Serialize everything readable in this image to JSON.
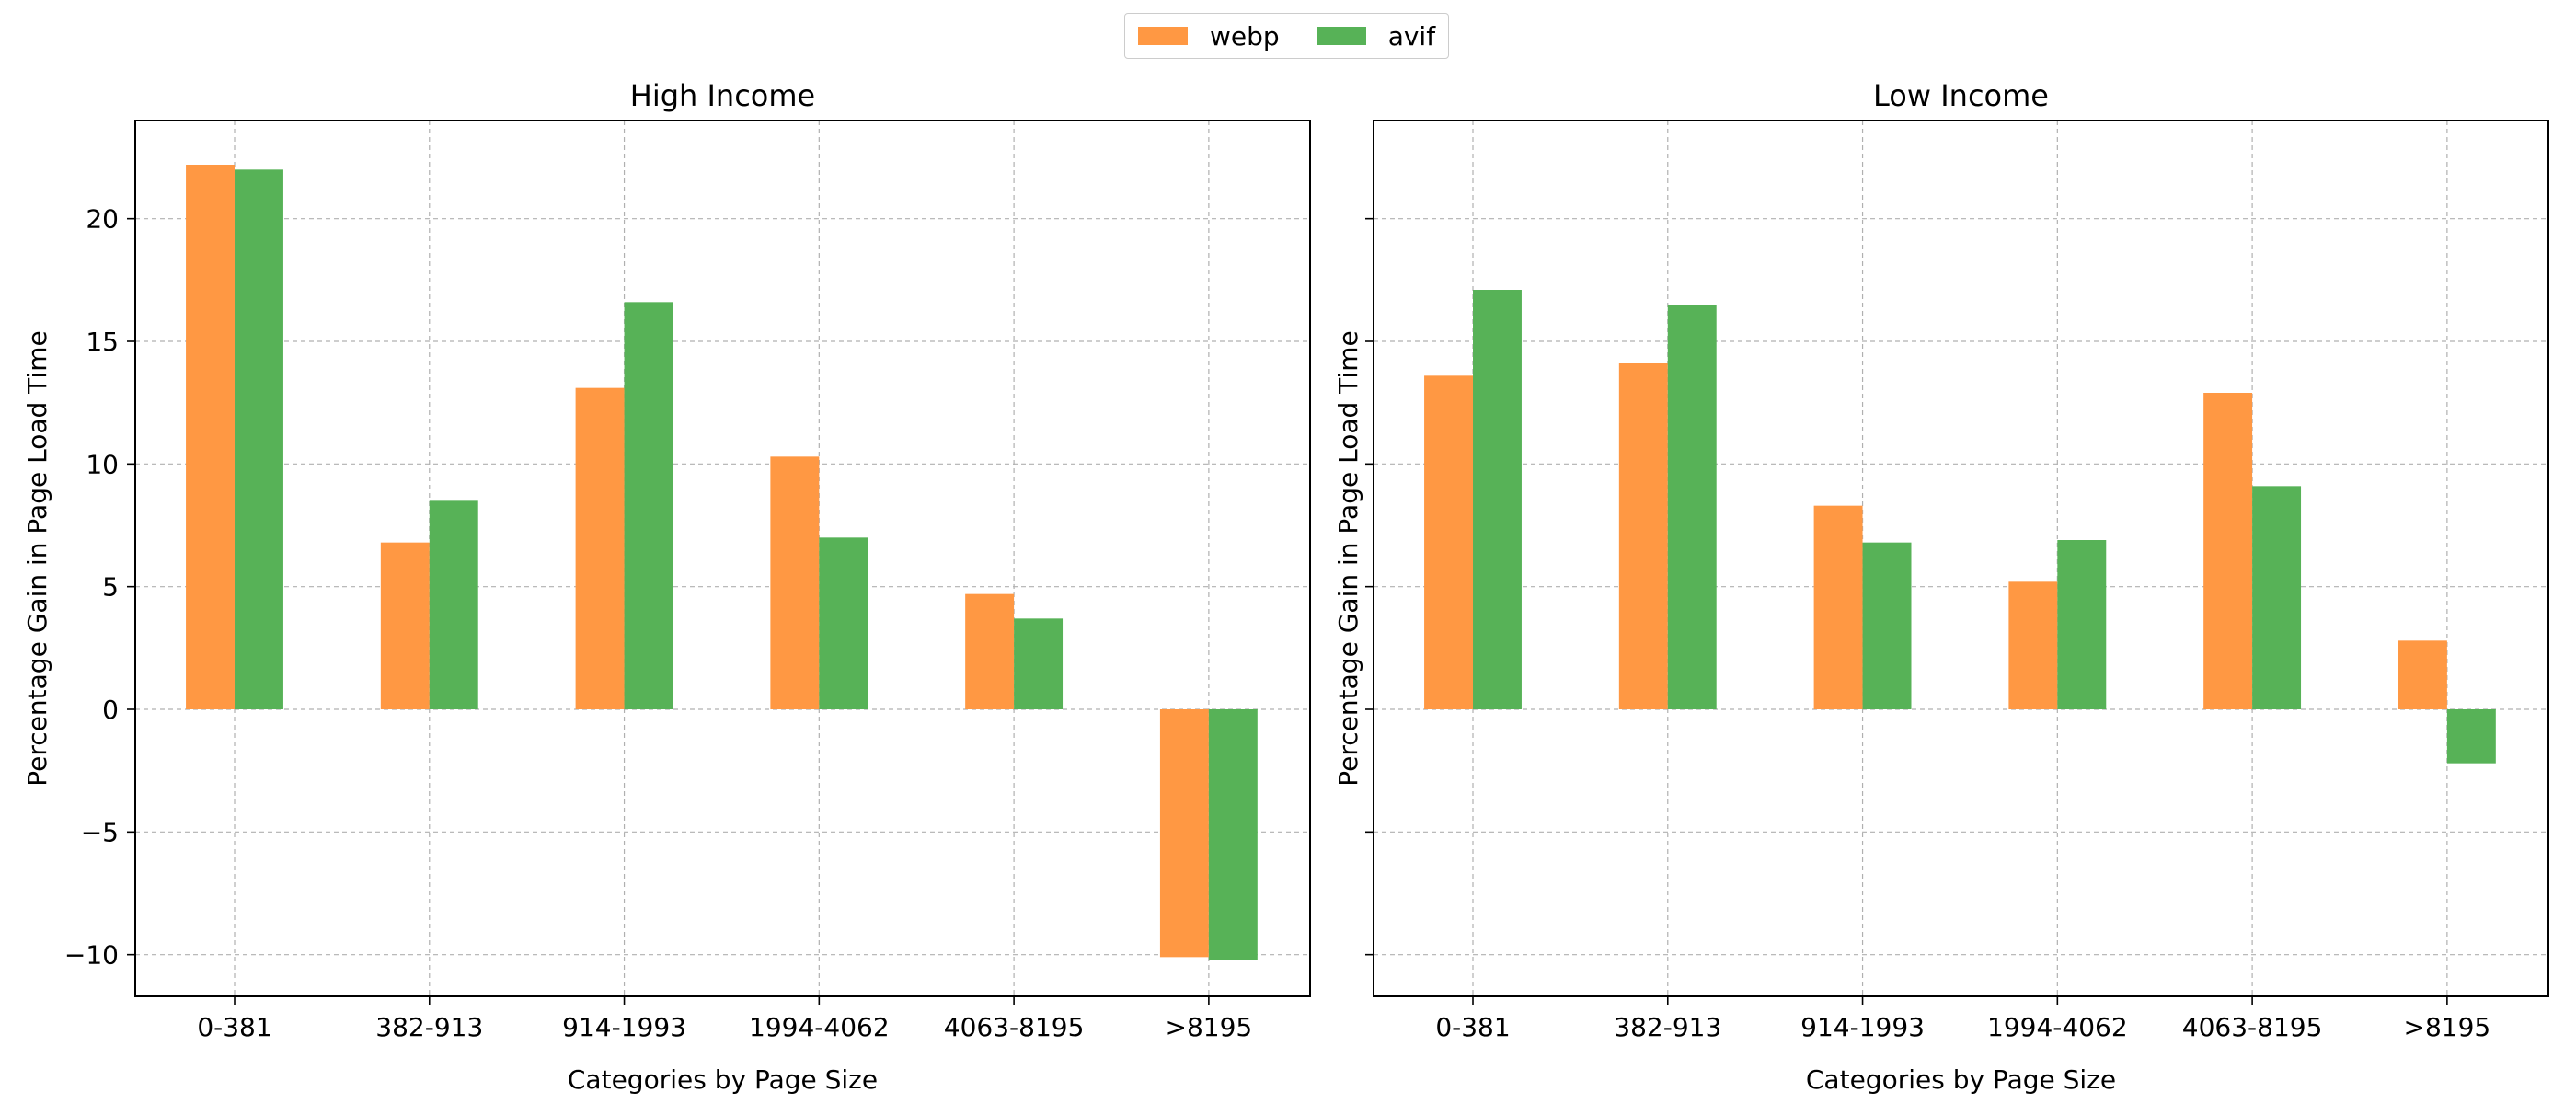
{
  "legend": {
    "items": [
      {
        "label": "webp",
        "color": "#ff9843"
      },
      {
        "label": "avif",
        "color": "#57b257"
      }
    ]
  },
  "chart_data": [
    {
      "type": "bar",
      "title": "High Income",
      "xlabel": "Categories by Page Size",
      "ylabel": "Percentage Gain in Page Load Time",
      "categories": [
        "0-381",
        "382-913",
        "914-1993",
        "1994-4062",
        "4063-8195",
        ">8195"
      ],
      "series": [
        {
          "name": "webp",
          "values": [
            22.2,
            6.8,
            13.1,
            10.3,
            4.7,
            -10.1
          ]
        },
        {
          "name": "avif",
          "values": [
            22.0,
            8.5,
            16.6,
            7.0,
            3.7,
            -10.2
          ]
        }
      ],
      "ylim": [
        -11.7,
        24.0
      ],
      "yticks": [
        -10,
        -5,
        0,
        5,
        10,
        15,
        20
      ],
      "ytick_labels": [
        "−10",
        "−5",
        "0",
        "5",
        "10",
        "15",
        "20"
      ],
      "grid": true,
      "legend": "top-center"
    },
    {
      "type": "bar",
      "title": "Low Income",
      "xlabel": "Categories by Page Size",
      "ylabel": "Percentage Gain in Page Load Time",
      "categories": [
        "0-381",
        "382-913",
        "914-1993",
        "1994-4062",
        "4063-8195",
        ">8195"
      ],
      "series": [
        {
          "name": "webp",
          "values": [
            13.6,
            14.1,
            8.3,
            5.2,
            12.9,
            2.8
          ]
        },
        {
          "name": "avif",
          "values": [
            17.1,
            16.5,
            6.8,
            6.9,
            9.1,
            -2.2
          ]
        }
      ],
      "ylim": [
        -11.7,
        24.0
      ],
      "yticks": [
        -10,
        -5,
        0,
        5,
        10,
        15,
        20
      ],
      "ytick_labels": [
        "",
        "",
        "",
        "",
        "",
        "",
        ""
      ],
      "grid": true,
      "legend": "top-center"
    }
  ]
}
